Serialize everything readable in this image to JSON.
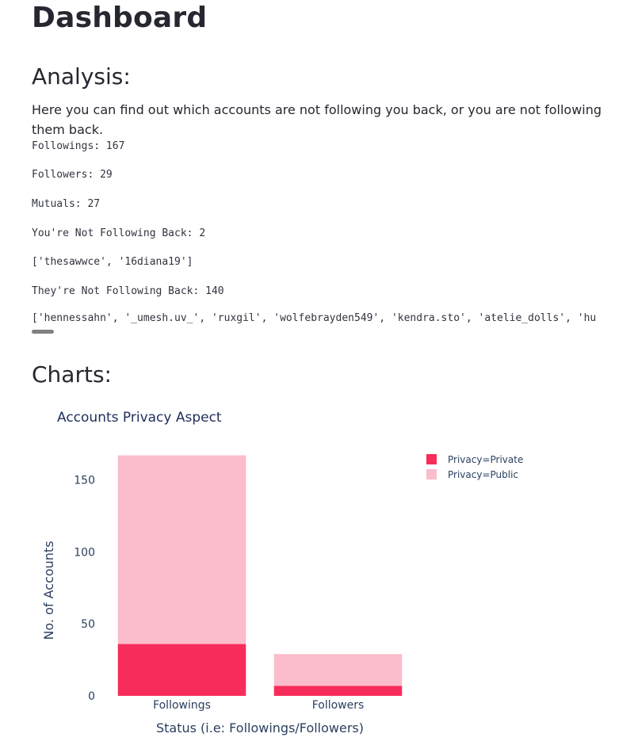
{
  "header": {
    "title": "Dashboard"
  },
  "analysis": {
    "heading": "Analysis:",
    "description": "Here you can find out which accounts are not following you back, or you are not following them back.",
    "followings": "Followings: 167",
    "followers": "Followers: 29",
    "mutuals": "Mutuals: 27",
    "not_following_back_label": "You're Not Following Back: 2",
    "not_following_back_list": "['thesawwce', '16diana19']",
    "they_not_following_label": "They're Not Following Back: 140",
    "they_not_following_list": "['hennessahn', '_umesh.uv_', 'ruxgil', 'wolfebrayden549', 'kendra.sto', 'atelie_dolls', 'hu"
  },
  "charts": {
    "heading": "Charts:"
  },
  "chart_data": {
    "type": "bar",
    "stacked": true,
    "title": "Accounts Privacy Aspect",
    "xlabel": "Status (i.e: Followings/Followers)",
    "ylabel": "No. of Accounts",
    "categories": [
      "Followings",
      "Followers"
    ],
    "series": [
      {
        "name": "Privacy=Private",
        "values": [
          36,
          7
        ],
        "color": "#f72c5b"
      },
      {
        "name": "Privacy=Public",
        "values": [
          131,
          22
        ],
        "color": "#fbbccb"
      }
    ],
    "ylim": [
      0,
      175
    ],
    "yticks": [
      0,
      50,
      100,
      150
    ],
    "legend": "top-right",
    "grid": false
  }
}
